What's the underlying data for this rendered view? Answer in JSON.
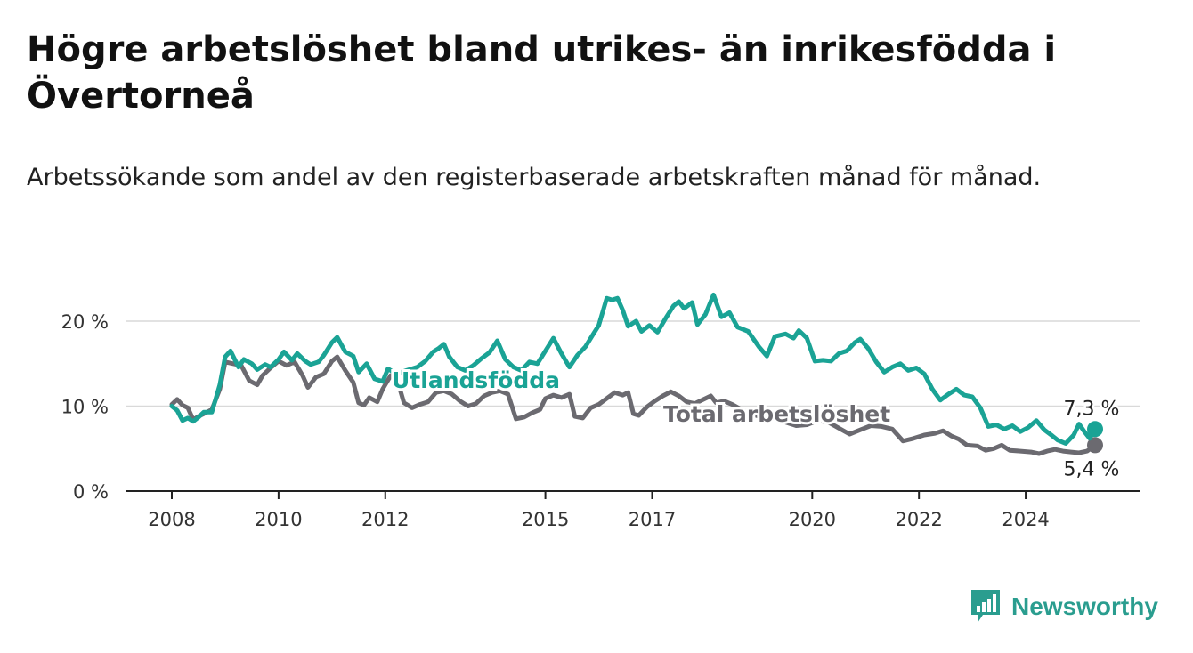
{
  "header": {
    "title": "Högre arbetslöshet bland utrikes- än inrikesfödda i Övertorneå",
    "subtitle": "Arbetssökande som andel av den registerbaserade arbetskraften månad för månad."
  },
  "brand": {
    "name": "Newsworthy",
    "icon": "newsworthy-logo-icon",
    "color": "#2a9d8f"
  },
  "chart_data": {
    "type": "line",
    "xlim": [
      2008.0,
      2025.6
    ],
    "ylim": [
      0,
      24
    ],
    "yticks": [
      0,
      10,
      20
    ],
    "ytick_labels": [
      "0 %",
      "10 %",
      "20 %"
    ],
    "xticks": [
      2008,
      2010,
      2012,
      2015,
      2017,
      2020,
      2022,
      2024
    ],
    "xtick_labels": [
      "2008",
      "2010",
      "2012",
      "2015",
      "2017",
      "2020",
      "2022",
      "2024"
    ],
    "grid": "horizontal",
    "series": [
      {
        "name": "Total arbetslöshet",
        "color": "#6b6a70",
        "end_label": "5,4 %",
        "points": [
          [
            2008.0,
            10.2
          ],
          [
            2008.1,
            10.8
          ],
          [
            2008.2,
            10.1
          ],
          [
            2008.3,
            9.8
          ],
          [
            2008.4,
            8.4
          ],
          [
            2008.5,
            8.8
          ],
          [
            2008.6,
            9.1
          ],
          [
            2008.75,
            9.6
          ],
          [
            2008.9,
            12.0
          ],
          [
            2009.0,
            15.2
          ],
          [
            2009.15,
            15.0
          ],
          [
            2009.3,
            14.8
          ],
          [
            2009.45,
            13.0
          ],
          [
            2009.6,
            12.5
          ],
          [
            2009.7,
            13.6
          ],
          [
            2009.85,
            14.5
          ],
          [
            2010.0,
            15.3
          ],
          [
            2010.15,
            14.8
          ],
          [
            2010.3,
            15.2
          ],
          [
            2010.45,
            13.6
          ],
          [
            2010.55,
            12.2
          ],
          [
            2010.7,
            13.4
          ],
          [
            2010.85,
            13.8
          ],
          [
            2011.0,
            15.3
          ],
          [
            2011.1,
            15.8
          ],
          [
            2011.25,
            14.2
          ],
          [
            2011.4,
            12.8
          ],
          [
            2011.5,
            10.4
          ],
          [
            2011.6,
            10.1
          ],
          [
            2011.7,
            11.0
          ],
          [
            2011.85,
            10.5
          ],
          [
            2011.95,
            12.0
          ],
          [
            2012.1,
            13.6
          ],
          [
            2012.25,
            12.5
          ],
          [
            2012.35,
            10.4
          ],
          [
            2012.5,
            9.8
          ],
          [
            2012.65,
            10.2
          ],
          [
            2012.8,
            10.5
          ],
          [
            2012.95,
            11.6
          ],
          [
            2013.1,
            11.8
          ],
          [
            2013.25,
            11.4
          ],
          [
            2013.4,
            10.6
          ],
          [
            2013.55,
            10.0
          ],
          [
            2013.7,
            10.3
          ],
          [
            2013.85,
            11.2
          ],
          [
            2014.0,
            11.6
          ],
          [
            2014.15,
            11.8
          ],
          [
            2014.3,
            11.4
          ],
          [
            2014.45,
            8.5
          ],
          [
            2014.6,
            8.7
          ],
          [
            2014.75,
            9.2
          ],
          [
            2014.9,
            9.6
          ],
          [
            2015.0,
            10.9
          ],
          [
            2015.15,
            11.3
          ],
          [
            2015.3,
            11.0
          ],
          [
            2015.45,
            11.4
          ],
          [
            2015.55,
            8.8
          ],
          [
            2015.7,
            8.6
          ],
          [
            2015.85,
            9.8
          ],
          [
            2016.0,
            10.2
          ],
          [
            2016.15,
            10.9
          ],
          [
            2016.3,
            11.6
          ],
          [
            2016.45,
            11.3
          ],
          [
            2016.55,
            11.6
          ],
          [
            2016.65,
            9.1
          ],
          [
            2016.75,
            8.9
          ],
          [
            2016.9,
            9.9
          ],
          [
            2017.05,
            10.6
          ],
          [
            2017.2,
            11.2
          ],
          [
            2017.35,
            11.7
          ],
          [
            2017.5,
            11.2
          ],
          [
            2017.65,
            10.5
          ],
          [
            2017.8,
            10.3
          ],
          [
            2018.0,
            10.9
          ],
          [
            2018.1,
            11.2
          ],
          [
            2018.2,
            10.4
          ],
          [
            2018.35,
            10.6
          ],
          [
            2018.5,
            10.2
          ],
          [
            2018.7,
            9.5
          ],
          [
            2018.9,
            9.0
          ],
          [
            2019.1,
            8.6
          ],
          [
            2019.3,
            8.8
          ],
          [
            2019.5,
            8.1
          ],
          [
            2019.7,
            7.7
          ],
          [
            2019.9,
            7.8
          ],
          [
            2020.1,
            8.3
          ],
          [
            2020.3,
            8.1
          ],
          [
            2020.5,
            7.4
          ],
          [
            2020.7,
            6.7
          ],
          [
            2020.9,
            7.2
          ],
          [
            2021.1,
            7.7
          ],
          [
            2021.3,
            7.6
          ],
          [
            2021.5,
            7.3
          ],
          [
            2021.7,
            5.9
          ],
          [
            2021.9,
            6.2
          ],
          [
            2022.1,
            6.6
          ],
          [
            2022.3,
            6.8
          ],
          [
            2022.45,
            7.1
          ],
          [
            2022.6,
            6.5
          ],
          [
            2022.75,
            6.1
          ],
          [
            2022.9,
            5.4
          ],
          [
            2023.1,
            5.3
          ],
          [
            2023.25,
            4.8
          ],
          [
            2023.4,
            5.0
          ],
          [
            2023.55,
            5.4
          ],
          [
            2023.7,
            4.8
          ],
          [
            2023.9,
            4.7
          ],
          [
            2024.1,
            4.6
          ],
          [
            2024.25,
            4.4
          ],
          [
            2024.4,
            4.7
          ],
          [
            2024.55,
            4.9
          ],
          [
            2024.7,
            4.7
          ],
          [
            2024.85,
            4.6
          ],
          [
            2025.0,
            4.5
          ],
          [
            2025.15,
            4.7
          ],
          [
            2025.3,
            5.4
          ]
        ]
      },
      {
        "name": "Utlandsfödda",
        "color": "#1aa395",
        "end_label": "7,3 %",
        "points": [
          [
            2008.0,
            10.0
          ],
          [
            2008.1,
            9.5
          ],
          [
            2008.2,
            8.3
          ],
          [
            2008.3,
            8.6
          ],
          [
            2008.4,
            8.2
          ],
          [
            2008.5,
            8.7
          ],
          [
            2008.6,
            9.3
          ],
          [
            2008.75,
            9.3
          ],
          [
            2008.9,
            12.5
          ],
          [
            2009.0,
            15.8
          ],
          [
            2009.1,
            16.5
          ],
          [
            2009.25,
            14.6
          ],
          [
            2009.35,
            15.5
          ],
          [
            2009.5,
            15.0
          ],
          [
            2009.6,
            14.3
          ],
          [
            2009.75,
            14.9
          ],
          [
            2009.85,
            14.6
          ],
          [
            2010.0,
            15.5
          ],
          [
            2010.1,
            16.4
          ],
          [
            2010.25,
            15.4
          ],
          [
            2010.35,
            16.2
          ],
          [
            2010.5,
            15.3
          ],
          [
            2010.6,
            14.9
          ],
          [
            2010.75,
            15.2
          ],
          [
            2010.85,
            16.0
          ],
          [
            2011.0,
            17.5
          ],
          [
            2011.1,
            18.1
          ],
          [
            2011.25,
            16.4
          ],
          [
            2011.4,
            15.9
          ],
          [
            2011.5,
            14.0
          ],
          [
            2011.65,
            15.0
          ],
          [
            2011.8,
            13.2
          ],
          [
            2011.95,
            12.9
          ],
          [
            2012.05,
            14.4
          ],
          [
            2012.2,
            13.8
          ],
          [
            2012.4,
            14.2
          ],
          [
            2012.6,
            14.6
          ],
          [
            2012.75,
            15.3
          ],
          [
            2012.9,
            16.4
          ],
          [
            2013.0,
            16.8
          ],
          [
            2013.1,
            17.3
          ],
          [
            2013.2,
            15.8
          ],
          [
            2013.35,
            14.6
          ],
          [
            2013.5,
            14.2
          ],
          [
            2013.65,
            14.8
          ],
          [
            2013.8,
            15.6
          ],
          [
            2013.95,
            16.3
          ],
          [
            2014.1,
            17.7
          ],
          [
            2014.25,
            15.5
          ],
          [
            2014.4,
            14.6
          ],
          [
            2014.55,
            14.2
          ],
          [
            2014.7,
            15.2
          ],
          [
            2014.85,
            15.0
          ],
          [
            2015.0,
            16.5
          ],
          [
            2015.15,
            18.0
          ],
          [
            2015.3,
            16.2
          ],
          [
            2015.45,
            14.6
          ],
          [
            2015.6,
            16.0
          ],
          [
            2015.75,
            17.0
          ],
          [
            2015.9,
            18.5
          ],
          [
            2016.0,
            19.5
          ],
          [
            2016.15,
            22.7
          ],
          [
            2016.25,
            22.5
          ],
          [
            2016.35,
            22.7
          ],
          [
            2016.45,
            21.3
          ],
          [
            2016.55,
            19.4
          ],
          [
            2016.7,
            20.0
          ],
          [
            2016.8,
            18.8
          ],
          [
            2016.95,
            19.5
          ],
          [
            2017.1,
            18.7
          ],
          [
            2017.25,
            20.3
          ],
          [
            2017.4,
            21.8
          ],
          [
            2017.5,
            22.3
          ],
          [
            2017.6,
            21.5
          ],
          [
            2017.75,
            22.2
          ],
          [
            2017.85,
            19.6
          ],
          [
            2018.0,
            20.8
          ],
          [
            2018.15,
            23.1
          ],
          [
            2018.3,
            20.5
          ],
          [
            2018.45,
            21.0
          ],
          [
            2018.6,
            19.3
          ],
          [
            2018.8,
            18.8
          ],
          [
            2019.0,
            17.0
          ],
          [
            2019.15,
            15.9
          ],
          [
            2019.3,
            18.2
          ],
          [
            2019.5,
            18.5
          ],
          [
            2019.65,
            18.0
          ],
          [
            2019.75,
            18.9
          ],
          [
            2019.9,
            18.0
          ],
          [
            2020.05,
            15.3
          ],
          [
            2020.2,
            15.4
          ],
          [
            2020.35,
            15.3
          ],
          [
            2020.5,
            16.2
          ],
          [
            2020.65,
            16.5
          ],
          [
            2020.8,
            17.5
          ],
          [
            2020.9,
            17.9
          ],
          [
            2021.05,
            16.8
          ],
          [
            2021.2,
            15.2
          ],
          [
            2021.35,
            14.0
          ],
          [
            2021.5,
            14.6
          ],
          [
            2021.65,
            15.0
          ],
          [
            2021.8,
            14.2
          ],
          [
            2021.95,
            14.5
          ],
          [
            2022.1,
            13.8
          ],
          [
            2022.25,
            12.0
          ],
          [
            2022.4,
            10.7
          ],
          [
            2022.55,
            11.4
          ],
          [
            2022.7,
            12.0
          ],
          [
            2022.85,
            11.3
          ],
          [
            2023.0,
            11.1
          ],
          [
            2023.15,
            9.8
          ],
          [
            2023.3,
            7.6
          ],
          [
            2023.45,
            7.8
          ],
          [
            2023.6,
            7.3
          ],
          [
            2023.75,
            7.7
          ],
          [
            2023.9,
            7.0
          ],
          [
            2024.05,
            7.5
          ],
          [
            2024.2,
            8.3
          ],
          [
            2024.35,
            7.2
          ],
          [
            2024.5,
            6.5
          ],
          [
            2024.6,
            6.0
          ],
          [
            2024.75,
            5.6
          ],
          [
            2024.9,
            6.6
          ],
          [
            2025.0,
            7.9
          ],
          [
            2025.1,
            7.0
          ],
          [
            2025.2,
            6.2
          ],
          [
            2025.3,
            7.3
          ]
        ]
      }
    ]
  }
}
